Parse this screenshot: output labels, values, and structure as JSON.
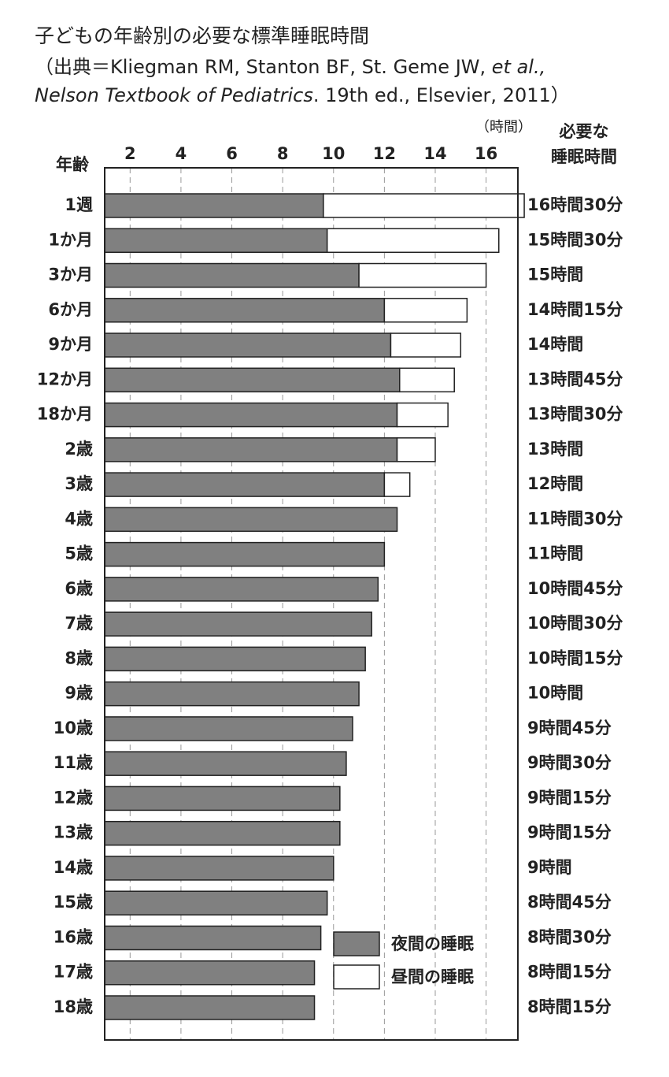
{
  "chart_data": {
    "type": "stacked-bar-horizontal",
    "title": "子どもの年齢別の必要な標準睡眠時間",
    "subtitle": [
      "（出典＝Kliegman RM, Stanton BF, St. Geme JW, ",
      "et al.,",
      "Nelson Textbook of Pediatrics",
      ". 19th ed., Elsevier, 2011）"
    ],
    "y_label": "年齢",
    "x_unit": "（時間）",
    "total_header": [
      "必要な",
      "睡眠時間"
    ],
    "categories": [
      "1週",
      "1か月",
      "3か月",
      "6か月",
      "9か月",
      "12か月",
      "18か月",
      "2歳",
      "3歳",
      "4歳",
      "5歳",
      "6歳",
      "7歳",
      "8歳",
      "9歳",
      "10歳",
      "11歳",
      "12歳",
      "13歳",
      "14歳",
      "15歳",
      "16歳",
      "17歳",
      "18歳"
    ],
    "series": [
      {
        "name": "夜間の睡眠",
        "color": "#808080",
        "values": [
          8.6,
          8.75,
          10,
          11,
          11.25,
          11.6,
          11.5,
          11.5,
          11,
          11.5,
          11,
          10.75,
          10.5,
          10.25,
          10,
          9.75,
          9.5,
          9.25,
          9.25,
          9,
          8.75,
          8.5,
          8.25,
          8.25
        ]
      },
      {
        "name": "昼間の睡眠",
        "color": "#ffffff",
        "values": [
          7.9,
          6.75,
          5,
          3.25,
          2.75,
          2.15,
          2,
          1.5,
          1,
          null,
          null,
          null,
          null,
          null,
          null,
          null,
          null,
          null,
          null,
          null,
          null,
          null,
          null,
          null
        ]
      }
    ],
    "total_labels": [
      "16時間30分",
      "15時間30分",
      "15時間",
      "14時間15分",
      "14時間",
      "13時間45分",
      "13時間30分",
      "13時間",
      "12時間",
      "11時間30分",
      "11時間",
      "10時間45分",
      "10時間30分",
      "10時間15分",
      "10時間",
      "9時間45分",
      "9時間30分",
      "9時間15分",
      "9時間15分",
      "9時間",
      "8時間45分",
      "8時間30分",
      "8時間15分",
      "8時間15分"
    ],
    "xlim": [
      1,
      17.25
    ],
    "xticks": [
      2,
      4,
      6,
      8,
      10,
      12,
      14,
      16
    ],
    "grid": true,
    "legend": "lower right"
  }
}
